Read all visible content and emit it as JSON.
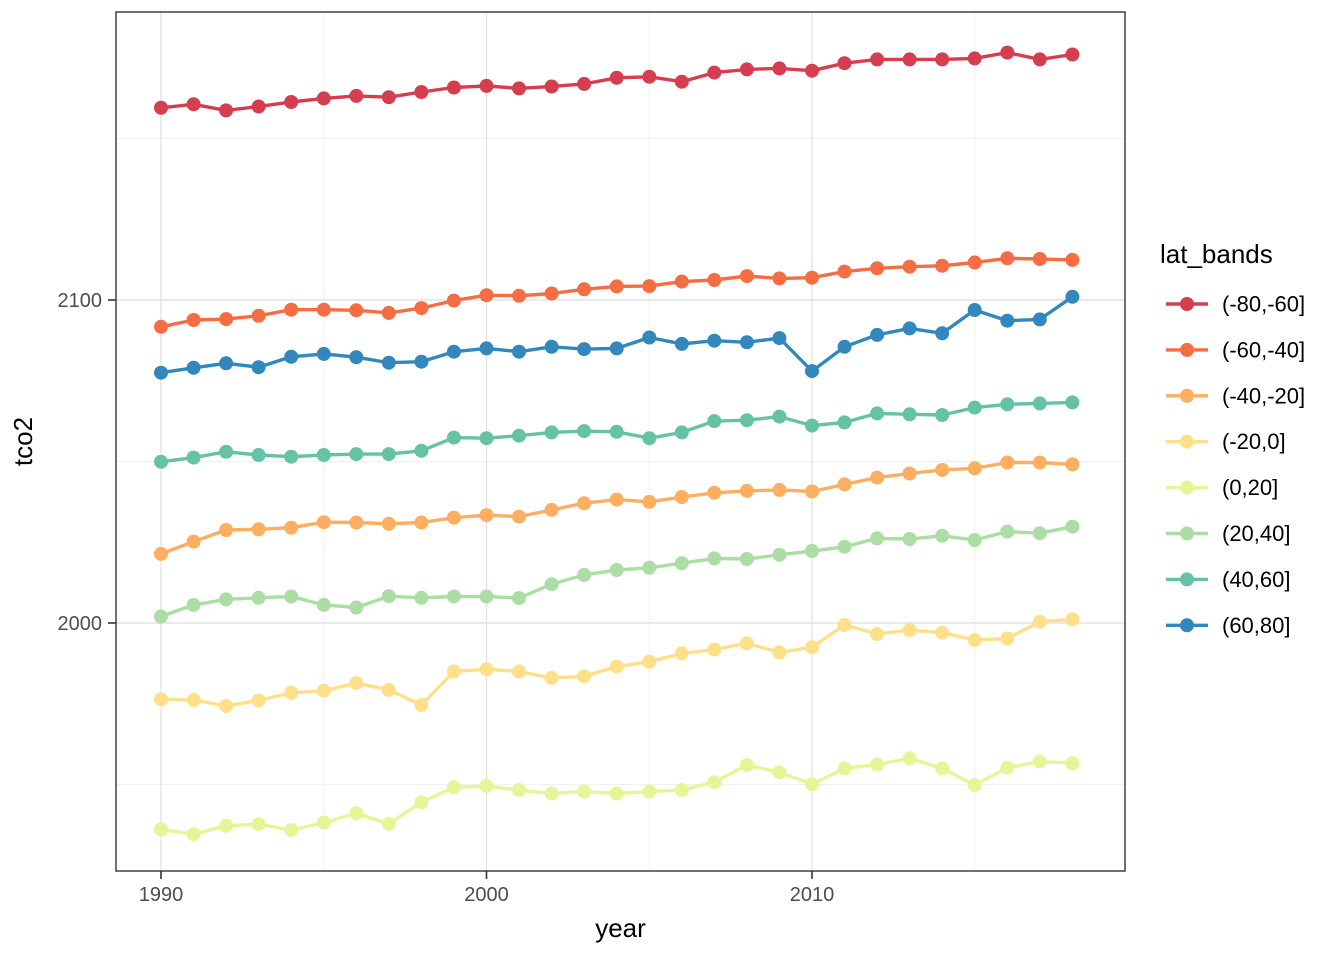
{
  "chart_data": {
    "type": "line",
    "title": "",
    "xlabel": "year",
    "ylabel": "tco2",
    "legend_title": "lat_bands",
    "legend_position": "right",
    "grid": true,
    "marker": "circle",
    "xlim": [
      1988.6,
      2019.7
    ],
    "ylim": [
      1923,
      2189
    ],
    "x_ticks": [
      {
        "value": 1990,
        "label": "1990"
      },
      {
        "value": 2000,
        "label": "2000"
      },
      {
        "value": 2010,
        "label": "2010"
      }
    ],
    "y_ticks": [
      {
        "value": 2000,
        "label": "2000"
      },
      {
        "value": 2100,
        "label": "2100"
      }
    ],
    "x_minor_gridlines": [
      1995,
      2005,
      2015
    ],
    "y_minor_gridlines": [
      1950,
      2050,
      2150
    ],
    "x": [
      1990,
      1991,
      1992,
      1993,
      1994,
      1995,
      1996,
      1997,
      1998,
      1999,
      2000,
      2001,
      2002,
      2003,
      2004,
      2005,
      2006,
      2007,
      2008,
      2009,
      2010,
      2011,
      2012,
      2013,
      2014,
      2015,
      2016,
      2017,
      2018
    ],
    "series": [
      {
        "name": "(-80,-60]",
        "color": "#D53E4F",
        "values": [
          2159.5,
          2160.6,
          2158.7,
          2159.9,
          2161.3,
          2162.4,
          2163.2,
          2162.8,
          2164.4,
          2165.8,
          2166.3,
          2165.5,
          2166.1,
          2166.9,
          2168.8,
          2169.1,
          2167.6,
          2170.4,
          2171.4,
          2171.7,
          2171.0,
          2173.3,
          2174.5,
          2174.5,
          2174.5,
          2174.8,
          2176.6,
          2174.5,
          2176.0
        ]
      },
      {
        "name": "(-60,-40]",
        "color": "#F46D43",
        "values": [
          2091.7,
          2093.8,
          2094.1,
          2095.1,
          2097.0,
          2097.0,
          2096.8,
          2096.0,
          2097.5,
          2099.8,
          2101.5,
          2101.3,
          2102.0,
          2103.3,
          2104.2,
          2104.3,
          2105.7,
          2106.2,
          2107.4,
          2106.7,
          2106.9,
          2108.8,
          2109.8,
          2110.3,
          2110.6,
          2111.6,
          2112.9,
          2112.7,
          2112.4
        ]
      },
      {
        "name": "(-40,-20]",
        "color": "#FDAE61",
        "values": [
          2021.4,
          2025.2,
          2028.8,
          2029.0,
          2029.5,
          2031.2,
          2031.1,
          2030.7,
          2031.1,
          2032.6,
          2033.4,
          2032.9,
          2035.0,
          2037.1,
          2038.2,
          2037.5,
          2039.0,
          2040.3,
          2040.9,
          2041.2,
          2040.7,
          2042.9,
          2045.0,
          2046.3,
          2047.4,
          2047.9,
          2049.7,
          2049.7,
          2049.1
        ]
      },
      {
        "name": "(-20,0]",
        "color": "#FEE08B",
        "values": [
          1976.4,
          1976.2,
          1974.3,
          1976.0,
          1978.4,
          1979.0,
          1981.4,
          1979.3,
          1974.6,
          1985.0,
          1985.7,
          1985.0,
          1983.0,
          1983.5,
          1986.5,
          1988.0,
          1990.6,
          1991.8,
          1993.7,
          1990.9,
          1992.5,
          1999.4,
          1996.6,
          1997.8,
          1997.0,
          1994.7,
          1995.2,
          2000.4,
          2001.1
        ]
      },
      {
        "name": "(0,20]",
        "color": "#E6F598",
        "values": [
          1936.1,
          1934.6,
          1937.2,
          1937.7,
          1935.9,
          1938.2,
          1941.1,
          1937.8,
          1944.5,
          1949.1,
          1949.5,
          1948.3,
          1947.2,
          1947.8,
          1947.2,
          1947.8,
          1948.3,
          1950.7,
          1956.0,
          1953.8,
          1950.1,
          1955.0,
          1956.2,
          1958.1,
          1955.0,
          1949.8,
          1955.2,
          1957.1,
          1956.6
        ]
      },
      {
        "name": "(20,40]",
        "color": "#ABDDA4",
        "values": [
          2002.0,
          2005.6,
          2007.3,
          2007.8,
          2008.2,
          2005.6,
          2004.8,
          2008.3,
          2007.8,
          2008.2,
          2008.2,
          2007.7,
          2012.0,
          2014.9,
          2016.4,
          2017.1,
          2018.5,
          2020.0,
          2019.8,
          2021.1,
          2022.3,
          2023.6,
          2026.2,
          2026.0,
          2027.0,
          2025.7,
          2028.3,
          2027.8,
          2029.8
        ]
      },
      {
        "name": "(40,60]",
        "color": "#66C2A5",
        "values": [
          2049.9,
          2051.2,
          2053.0,
          2052.0,
          2051.5,
          2052.0,
          2052.3,
          2052.3,
          2053.3,
          2057.4,
          2057.2,
          2058.0,
          2059.0,
          2059.4,
          2059.2,
          2057.2,
          2059.0,
          2062.5,
          2062.8,
          2063.9,
          2061.1,
          2062.1,
          2064.9,
          2064.6,
          2064.4,
          2066.7,
          2067.7,
          2068.0,
          2068.3
        ]
      },
      {
        "name": "(60,80]",
        "color": "#3288BD",
        "values": [
          2077.5,
          2079.0,
          2080.4,
          2079.2,
          2082.4,
          2083.3,
          2082.3,
          2080.6,
          2080.9,
          2084.0,
          2085.0,
          2084.0,
          2085.5,
          2084.8,
          2085.0,
          2088.4,
          2086.4,
          2087.4,
          2086.9,
          2088.2,
          2078.0,
          2085.5,
          2089.2,
          2091.2,
          2089.7,
          2096.9,
          2093.6,
          2094.0,
          2101.0
        ]
      }
    ],
    "style": {
      "panel_background": "#FFFFFF",
      "panel_border_color": "#333333",
      "major_grid_color": "#E4E4E4",
      "minor_grid_color": "#F0F0F0",
      "tick_color": "#333333",
      "tick_label_color": "#4D4D4D"
    }
  }
}
